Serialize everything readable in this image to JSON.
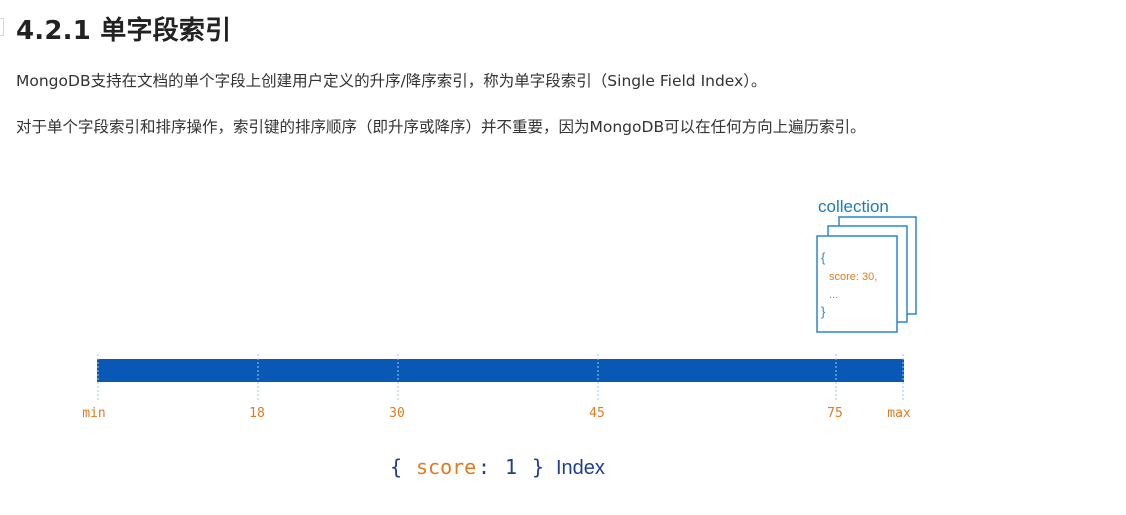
{
  "heading": "4.2.1 单字段索引",
  "paragraphs": [
    "MongoDB支持在文档的单个字段上创建用户定义的升序/降序索引，称为单字段索引（Single Field Index）。",
    "对于单个字段索引和排序操作，索引键的排序顺序（即升序或降序）并不重要，因为MongoDB可以在任何方向上遍历索引。"
  ],
  "figure": {
    "collection_label": "collection",
    "doc_open": "{",
    "doc_field": "score: 30,",
    "doc_ellipsis": "...",
    "doc_close": "}",
    "axis_labels": [
      "min",
      "18",
      "30",
      "45",
      "75",
      "max"
    ],
    "index_open": "{",
    "index_key": "score",
    "index_colon": ":",
    "index_value": "1",
    "index_close": "}",
    "index_word": "Index",
    "colors": {
      "bar": "#0a58b5",
      "blue_text": "#1a7bc4",
      "orange": "#e07b1f",
      "navy": "#1f3f8c"
    }
  }
}
